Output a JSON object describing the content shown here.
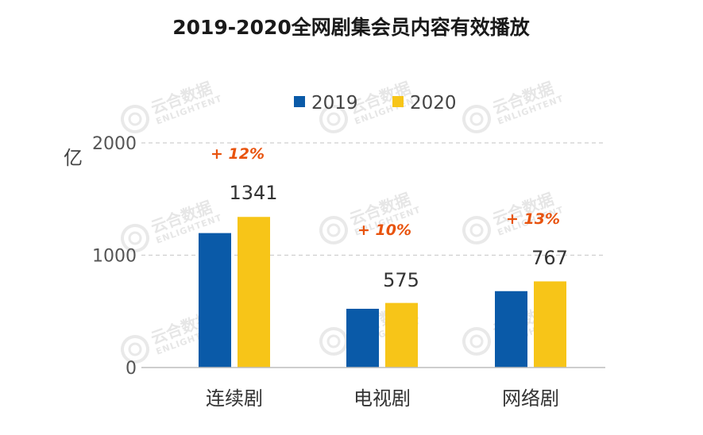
{
  "chart_data": {
    "type": "bar",
    "title": "2019-2020全网剧集会员内容有效播放",
    "ylabel": "亿",
    "xlabel": "",
    "ylim": [
      0,
      2000
    ],
    "yticks": [
      "0",
      "1000",
      "2000"
    ],
    "ytick_values": [
      0,
      1000,
      2000
    ],
    "grid": true,
    "legend_position": "top-center",
    "categories": [
      "连续剧",
      "电视剧",
      "网络剧"
    ],
    "series": [
      {
        "name": "2019",
        "color": "#0a5aa8",
        "values": [
          1197,
          523,
          680
        ]
      },
      {
        "name": "2020",
        "color": "#f7c518",
        "values": [
          1341,
          575,
          767
        ]
      }
    ],
    "value_labels": [
      "1341",
      "575",
      "767"
    ],
    "annotations": [
      "+ 12%",
      "+ 10%",
      "+ 13%"
    ]
  },
  "watermark": {
    "brand": "云合数据",
    "sub": "ENLIGHTENT"
  }
}
